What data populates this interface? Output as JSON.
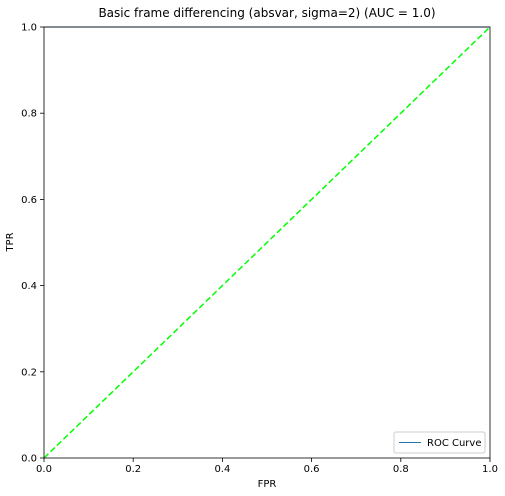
{
  "chart_data": {
    "type": "line",
    "title": "Basic frame differencing (absvar, sigma=2) (AUC = 1.0)",
    "xlabel": "FPR",
    "ylabel": "TPR",
    "xlim": [
      0.0,
      1.0
    ],
    "ylim": [
      0.0,
      1.0
    ],
    "x_ticks": [
      0.0,
      0.2,
      0.4,
      0.6,
      0.8,
      1.0
    ],
    "y_ticks": [
      0.0,
      0.2,
      0.4,
      0.6,
      0.8,
      1.0
    ],
    "x_tick_labels": [
      "0.0",
      "0.2",
      "0.4",
      "0.6",
      "0.8",
      "1.0"
    ],
    "y_tick_labels": [
      "0.0",
      "0.2",
      "0.4",
      "0.6",
      "0.8",
      "1.0"
    ],
    "grid": false,
    "legend_position": "lower-right",
    "series": [
      {
        "name": "ROC Curve",
        "x": [
          0.0,
          1.0
        ],
        "y": [
          1.0,
          1.0
        ],
        "color": "#1f77b4",
        "style": "solid"
      },
      {
        "x": [
          0.0,
          1.0
        ],
        "y": [
          0.0,
          1.0
        ],
        "color": "#00ff00",
        "style": "dashed"
      }
    ]
  }
}
